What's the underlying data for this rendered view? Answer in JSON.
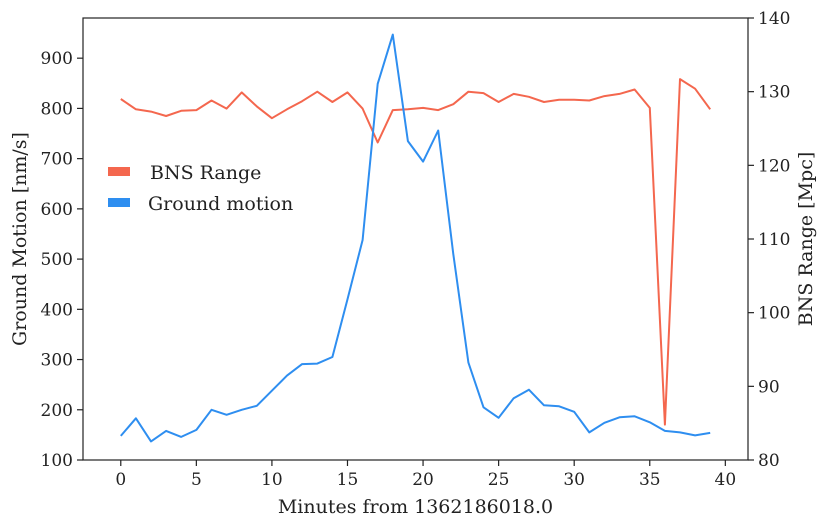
{
  "chart_data": {
    "type": "line",
    "xlabel": "Minutes from 1362186018.0",
    "ylabel_left": "Ground Motion [nm/s]",
    "ylabel_right": "BNS Range [Mpc]",
    "xlim": [
      -2.5,
      41.5
    ],
    "xticks": [
      0,
      5,
      10,
      15,
      20,
      25,
      30,
      35,
      40
    ],
    "ylim_left": [
      100,
      980
    ],
    "yticks_left": [
      100,
      200,
      300,
      400,
      500,
      600,
      700,
      800,
      900
    ],
    "ylim_right": [
      80,
      140
    ],
    "yticks_right": [
      80,
      90,
      100,
      110,
      120,
      130,
      140
    ],
    "legend_position": "center-left",
    "grid": false,
    "x": [
      0,
      1,
      2,
      3,
      4,
      5,
      6,
      7,
      8,
      9,
      10,
      11,
      12,
      13,
      14,
      15,
      16,
      17,
      18,
      19,
      20,
      21,
      22,
      23,
      24,
      25,
      26,
      27,
      28,
      29,
      30,
      31,
      32,
      33,
      34,
      35,
      36,
      37,
      38,
      39
    ],
    "series": [
      {
        "name": "BNS Range",
        "axis": "right",
        "color": "#f4674e",
        "values": [
          129.0,
          127.6,
          127.3,
          126.7,
          127.4,
          127.5,
          128.8,
          127.7,
          129.9,
          128.0,
          126.4,
          127.6,
          128.7,
          130.0,
          128.6,
          129.9,
          127.7,
          123.1,
          127.5,
          127.6,
          127.8,
          127.5,
          128.3,
          130.0,
          129.8,
          128.6,
          129.7,
          129.3,
          128.6,
          128.9,
          128.9,
          128.8,
          129.4,
          129.7,
          130.3,
          127.8,
          84.8,
          131.7,
          130.4,
          127.6
        ]
      },
      {
        "name": "Ground motion",
        "axis": "left",
        "color": "#2e8ef0",
        "values": [
          148,
          183,
          137,
          158,
          146,
          160,
          200,
          190,
          200,
          208,
          238,
          268,
          291,
          292,
          305,
          420,
          538,
          849,
          947,
          735,
          694,
          756,
          510,
          294,
          205,
          184,
          223,
          240,
          209,
          207,
          196,
          155,
          174,
          185,
          187,
          175,
          158,
          155,
          149,
          154
        ]
      }
    ]
  }
}
